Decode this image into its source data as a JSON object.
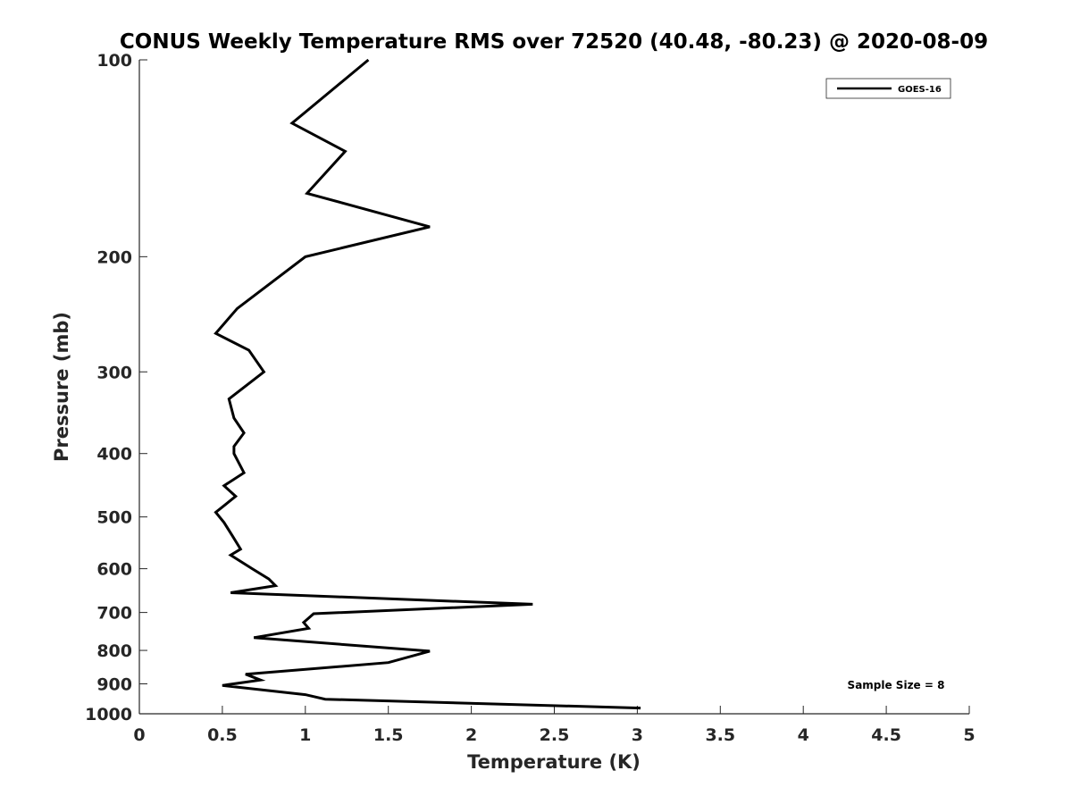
{
  "chart_data": {
    "type": "line",
    "title": "CONUS Weekly Temperature RMS over 72520 (40.48, -80.23) @ 2020-08-09",
    "xlabel": "Temperature (K)",
    "ylabel": "Pressure (mb)",
    "xlim": [
      0,
      5
    ],
    "ylim": [
      100,
      1000
    ],
    "y_scale": "log",
    "y_reversed": true,
    "x_ticks": [
      "0",
      "0.5",
      "1",
      "1.5",
      "2",
      "2.5",
      "3",
      "3.5",
      "4",
      "4.5",
      "5"
    ],
    "y_ticks": [
      "100",
      "200",
      "300",
      "400",
      "500",
      "600",
      "700",
      "800",
      "900",
      "1000"
    ],
    "grid": false,
    "legend": {
      "position": "top-right",
      "entries": [
        "GOES-16"
      ]
    },
    "annotation": "Sample Size = 8",
    "series": [
      {
        "name": "GOES-16",
        "color": "#000000",
        "points": [
          [
            1.38,
            100
          ],
          [
            0.92,
            125
          ],
          [
            1.24,
            138
          ],
          [
            1.01,
            160
          ],
          [
            1.75,
            180
          ],
          [
            1.0,
            200
          ],
          [
            0.59,
            240
          ],
          [
            0.46,
            262
          ],
          [
            0.66,
            278
          ],
          [
            0.75,
            300
          ],
          [
            0.54,
            330
          ],
          [
            0.57,
            353
          ],
          [
            0.63,
            372
          ],
          [
            0.57,
            390
          ],
          [
            0.57,
            400
          ],
          [
            0.63,
            428
          ],
          [
            0.51,
            448
          ],
          [
            0.58,
            465
          ],
          [
            0.46,
            492
          ],
          [
            0.51,
            510
          ],
          [
            0.56,
            534
          ],
          [
            0.61,
            560
          ],
          [
            0.55,
            572
          ],
          [
            0.68,
            600
          ],
          [
            0.78,
            622
          ],
          [
            0.82,
            637
          ],
          [
            0.55,
            653
          ],
          [
            2.37,
            680
          ],
          [
            1.05,
            703
          ],
          [
            0.99,
            725
          ],
          [
            1.02,
            740
          ],
          [
            0.69,
            765
          ],
          [
            1.75,
            802
          ],
          [
            1.5,
            835
          ],
          [
            0.64,
            870
          ],
          [
            0.73,
            888
          ],
          [
            0.5,
            905
          ],
          [
            1.0,
            935
          ],
          [
            1.12,
            950
          ],
          [
            3.02,
            980
          ]
        ]
      }
    ]
  }
}
